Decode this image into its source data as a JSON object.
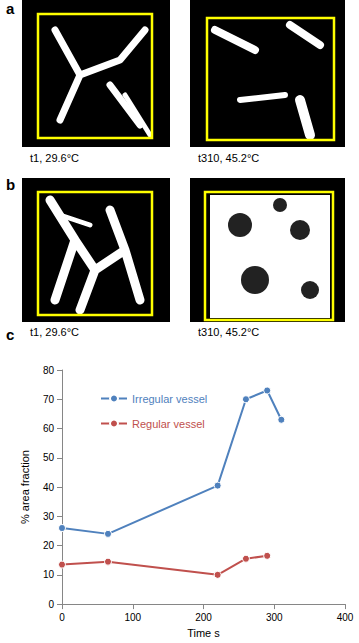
{
  "panels": [
    {
      "label": "a",
      "images": [
        {
          "caption": "t1, 29.6°C"
        },
        {
          "caption": "t310, 45.2°C"
        }
      ]
    },
    {
      "label": "b",
      "images": [
        {
          "caption": "t1, 29.6°C"
        },
        {
          "caption": "t310, 45.2°C"
        }
      ]
    }
  ],
  "chart_data": {
    "panel_label": "c",
    "type": "line",
    "x_label": "Time s",
    "y_label": "% area fraction",
    "series": [
      {
        "name": "Irregular vessel",
        "color": "#4f81bd",
        "x": [
          0,
          65,
          220,
          260,
          290,
          310
        ],
        "values": [
          26,
          24,
          40.5,
          70,
          73,
          63
        ]
      },
      {
        "name": "Regular vessel",
        "color": "#c0504d",
        "x": [
          0,
          65,
          220,
          260,
          290
        ],
        "values": [
          13.5,
          14.5,
          10,
          15.5,
          16.5
        ]
      }
    ],
    "xlim": [
      0,
      400
    ],
    "xticks": [
      0,
      100,
      200,
      300,
      400
    ],
    "ylim": [
      0,
      80
    ],
    "yticks": [
      0,
      10,
      20,
      30,
      40,
      50,
      60,
      70,
      80
    ],
    "grid": false,
    "legend": "upper left",
    "marker": "circle"
  }
}
